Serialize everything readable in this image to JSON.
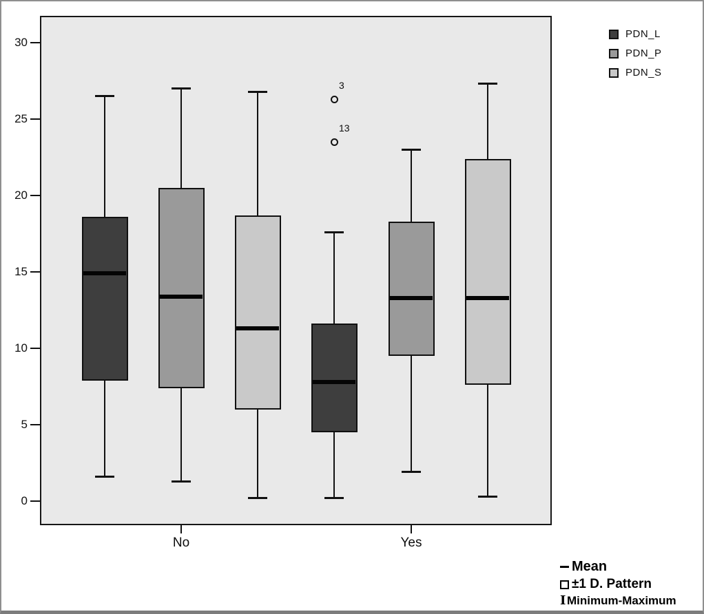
{
  "colors": {
    "panel_background": "#e9e9e9",
    "page_background": "#ffffff",
    "frame_border": "#8f8f8f",
    "line_color": "#111111"
  },
  "series_legend": {
    "items": [
      {
        "label": "PDN_L",
        "color": "#3e3e3e"
      },
      {
        "label": "PDN_P",
        "color": "#9a9a9a"
      },
      {
        "label": "PDN_S",
        "color": "#c9c9c9"
      }
    ]
  },
  "stats_legend": {
    "items": [
      {
        "symbol": "mean-dash",
        "symbol_char": "",
        "label": "Mean"
      },
      {
        "symbol": "open-square",
        "symbol_char": "",
        "label": "±1 D. Pattern"
      },
      {
        "symbol": "i-beam",
        "symbol_char": "I",
        "label": "Minimum-Maximum"
      }
    ]
  },
  "chart_data": {
    "type": "boxplot",
    "title": "",
    "xlabel": "",
    "ylabel": "",
    "grid": false,
    "categories": [
      "No",
      "Yes"
    ],
    "series": [
      "PDN_L",
      "PDN_P",
      "PDN_S"
    ],
    "ylim": [
      0,
      30
    ],
    "y_ticks": [
      0,
      5,
      10,
      15,
      20,
      25,
      30
    ],
    "box_semantics": {
      "center_line": "Mean",
      "box": "±1 D. Pattern",
      "whiskers": "Minimum-Maximum"
    },
    "legend_positions": {
      "series": "top-right",
      "stats": "bottom-right"
    },
    "boxes": [
      {
        "category": "No",
        "series": "PDN_L",
        "whisker_low": 1.6,
        "box_low": 7.9,
        "mean": 14.9,
        "box_high": 18.6,
        "whisker_high": 26.5,
        "outliers": []
      },
      {
        "category": "No",
        "series": "PDN_P",
        "whisker_low": 1.3,
        "box_low": 7.4,
        "mean": 13.4,
        "box_high": 20.5,
        "whisker_high": 27.0,
        "outliers": []
      },
      {
        "category": "No",
        "series": "PDN_S",
        "whisker_low": 0.2,
        "box_low": 6.0,
        "mean": 11.3,
        "box_high": 18.7,
        "whisker_high": 26.8,
        "outliers": []
      },
      {
        "category": "Yes",
        "series": "PDN_L",
        "whisker_low": 0.2,
        "box_low": 4.5,
        "mean": 7.8,
        "box_high": 11.6,
        "whisker_high": 17.6,
        "outliers": [
          {
            "value": 26.3,
            "label": "3"
          },
          {
            "value": 23.5,
            "label": "13"
          }
        ]
      },
      {
        "category": "Yes",
        "series": "PDN_P",
        "whisker_low": 1.9,
        "box_low": 9.5,
        "mean": 13.3,
        "box_high": 18.3,
        "whisker_high": 23.0,
        "outliers": []
      },
      {
        "category": "Yes",
        "series": "PDN_S",
        "whisker_low": 0.3,
        "box_low": 7.6,
        "mean": 13.3,
        "box_high": 22.4,
        "whisker_high": 27.3,
        "outliers": []
      }
    ]
  }
}
